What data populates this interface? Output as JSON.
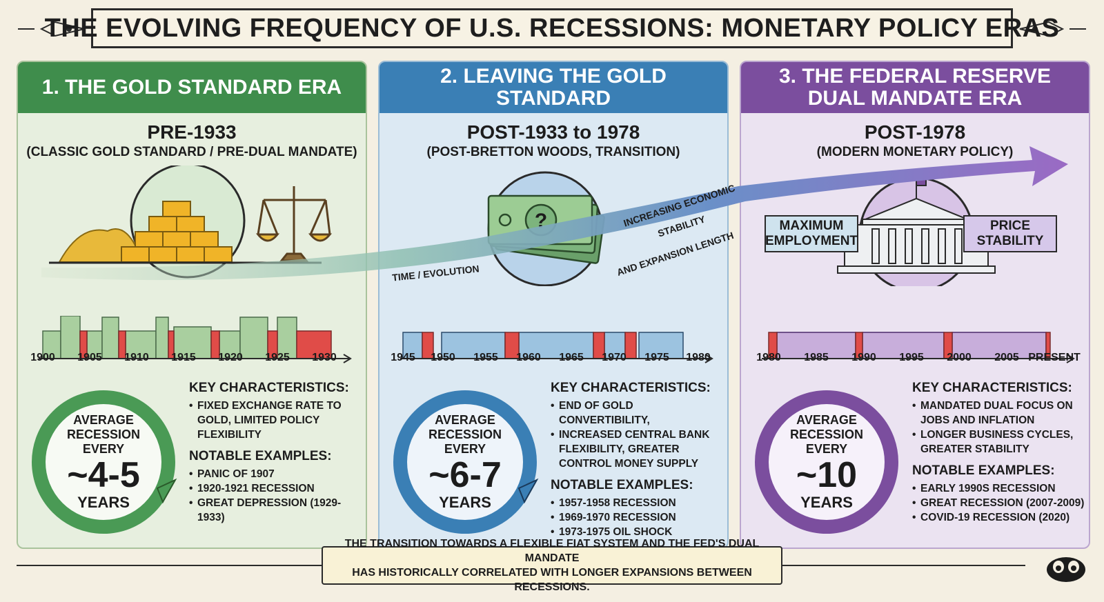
{
  "title": "THE EVOLVING FREQUENCY OF U.S. RECESSIONS: MONETARY POLICY ERAS",
  "colors": {
    "green": "#3f8d4c",
    "blue": "#3a7fb5",
    "purple": "#7b4e9e",
    "recession_red": "#e04c48"
  },
  "panels": [
    {
      "header": "1. THE GOLD STANDARD ERA",
      "date": "PRE-1933",
      "subtitle": "(CLASSIC GOLD STANDARD / PRE-DUAL MANDATE)",
      "ticks": [
        "1900",
        "1905",
        "1910",
        "1915",
        "1920",
        "1925",
        "1930"
      ],
      "avg_label": "AVERAGE RECESSION EVERY",
      "avg_value": "~4-5",
      "avg_unit": "YEARS",
      "key_title": "KEY CHARACTERISTICS:",
      "key_items": [
        "FIXED EXCHANGE RATE TO GOLD, LIMITED POLICY FLEXIBILITY"
      ],
      "notable_title": "NOTABLE EXAMPLES:",
      "notable_items": [
        "PANIC OF 1907",
        "1920-1921 RECESSION",
        "GREAT DEPRESSION (1929-1933)"
      ]
    },
    {
      "header": "2. LEAVING THE GOLD STANDARD",
      "date": "POST-1933 to 1978",
      "subtitle": "(POST-BRETTON WOODS, TRANSITION)",
      "ticks": [
        "1945",
        "1950",
        "1955",
        "1960",
        "1965",
        "1970",
        "1975",
        "1980"
      ],
      "avg_label": "AVERAGE RECESSION EVERY",
      "avg_value": "~6-7",
      "avg_unit": "YEARS",
      "key_title": "KEY CHARACTERISTICS:",
      "key_items": [
        "END OF GOLD CONVERTIBILITY,",
        "INCREASED CENTRAL BANK FLEXIBILITY, GREATER CONTROL MONEY SUPPLY"
      ],
      "notable_title": "NOTABLE EXAMPLES:",
      "notable_items": [
        "1957-1958 RECESSION",
        "1969-1970 RECESSION",
        "1973-1975 OIL SHOCK"
      ]
    },
    {
      "header": "3. THE FEDERAL RESERVE DUAL MANDATE ERA",
      "date": "POST-1978",
      "subtitle": "(MODERN MONETARY POLICY)",
      "ticks": [
        "1980",
        "1985",
        "1990",
        "1995",
        "2000",
        "2005",
        "PRESENT"
      ],
      "avg_label": "AVERAGE RECESSION EVERY",
      "avg_value": "~10",
      "avg_unit": "YEARS",
      "key_title": "KEY CHARACTERISTICS:",
      "key_items": [
        "MANDATED DUAL FOCUS ON JOBS AND INFLATION",
        "LONGER BUSINESS CYCLES, GREATER STABILITY"
      ],
      "notable_title": "NOTABLE EXAMPLES:",
      "notable_items": [
        "EARLY 1990s RECESSION",
        "GREAT RECESSION (2007-2009)",
        "COVID-19 RECESSION (2020)"
      ]
    }
  ],
  "arrow_labels": {
    "time": "TIME / EVOLUTION",
    "stability_1": "INCREASING ECONOMIC",
    "stability_2": "STABILITY",
    "stability_3": "AND EXPANSION LENGTH"
  },
  "building_labels": {
    "left": "MAXIMUM EMPLOYMENT",
    "right": "PRICE STABILITY"
  },
  "footer": {
    "line1": "THE TRANSITION TOWARDS A FLEXIBLE FIAT SYSTEM AND THE FED'S DUAL MANDATE",
    "line2": "HAS HISTORICALLY CORRELATED WITH LONGER EXPANSIONS BETWEEN RECESSIONS."
  }
}
